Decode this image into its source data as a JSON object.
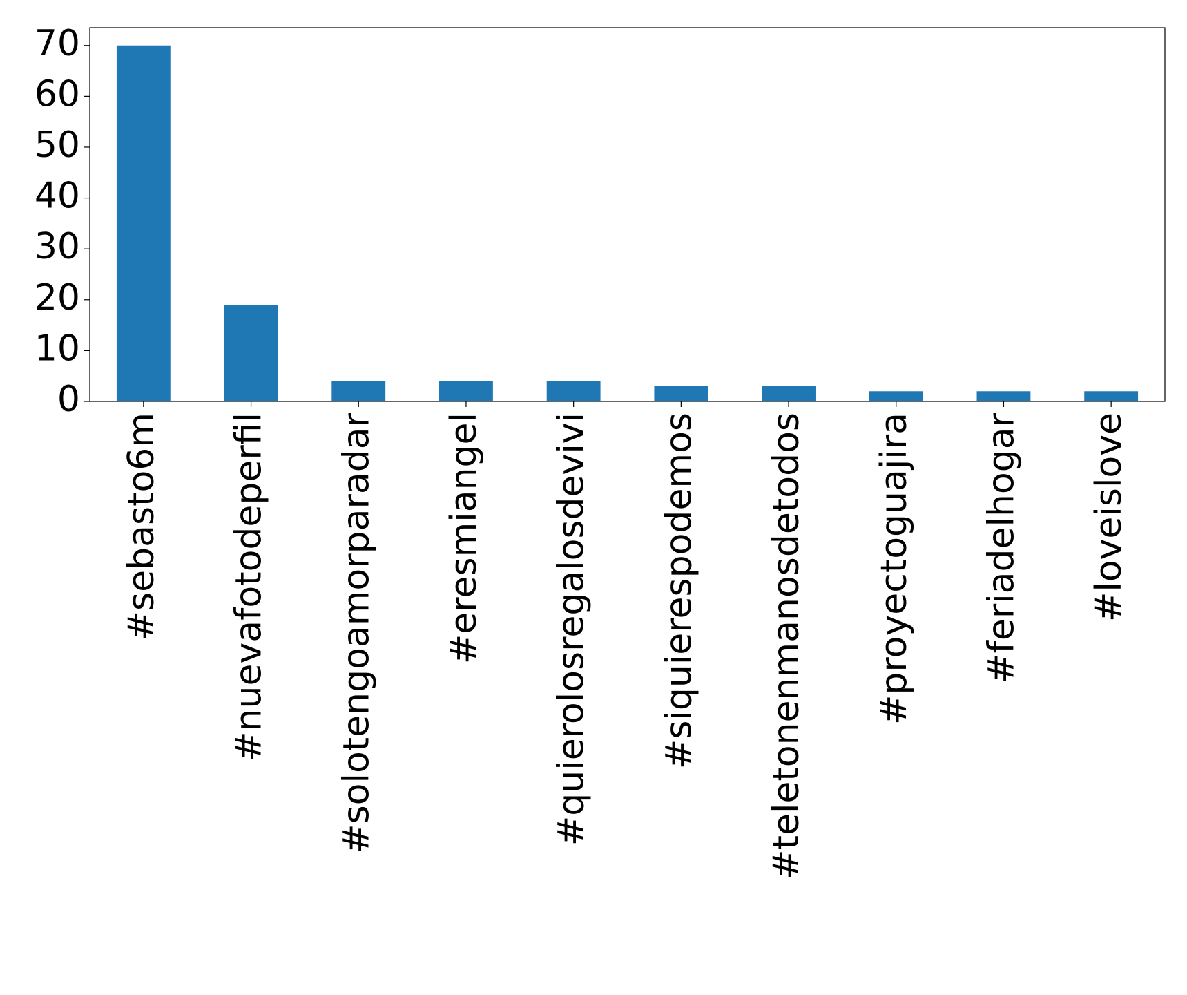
{
  "chart_data": {
    "type": "bar",
    "categories": [
      "#sebasto6m",
      "#nuevafotodeperfil",
      "#solotengoamorparadar",
      "#eresmiangel",
      "#quierolosregalosdevivi",
      "#siquierespodemos",
      "#teletonenmanosdetodos",
      "#proyectoguajira",
      "#feriadelhogar",
      "#loveislove"
    ],
    "values": [
      70,
      19,
      4,
      4,
      4,
      3,
      3,
      2,
      2,
      2
    ],
    "color": "#1f77b4",
    "ylim": [
      0,
      73.5
    ],
    "yticks": [
      0,
      10,
      20,
      30,
      40,
      50,
      60,
      70
    ],
    "grid": false
  }
}
